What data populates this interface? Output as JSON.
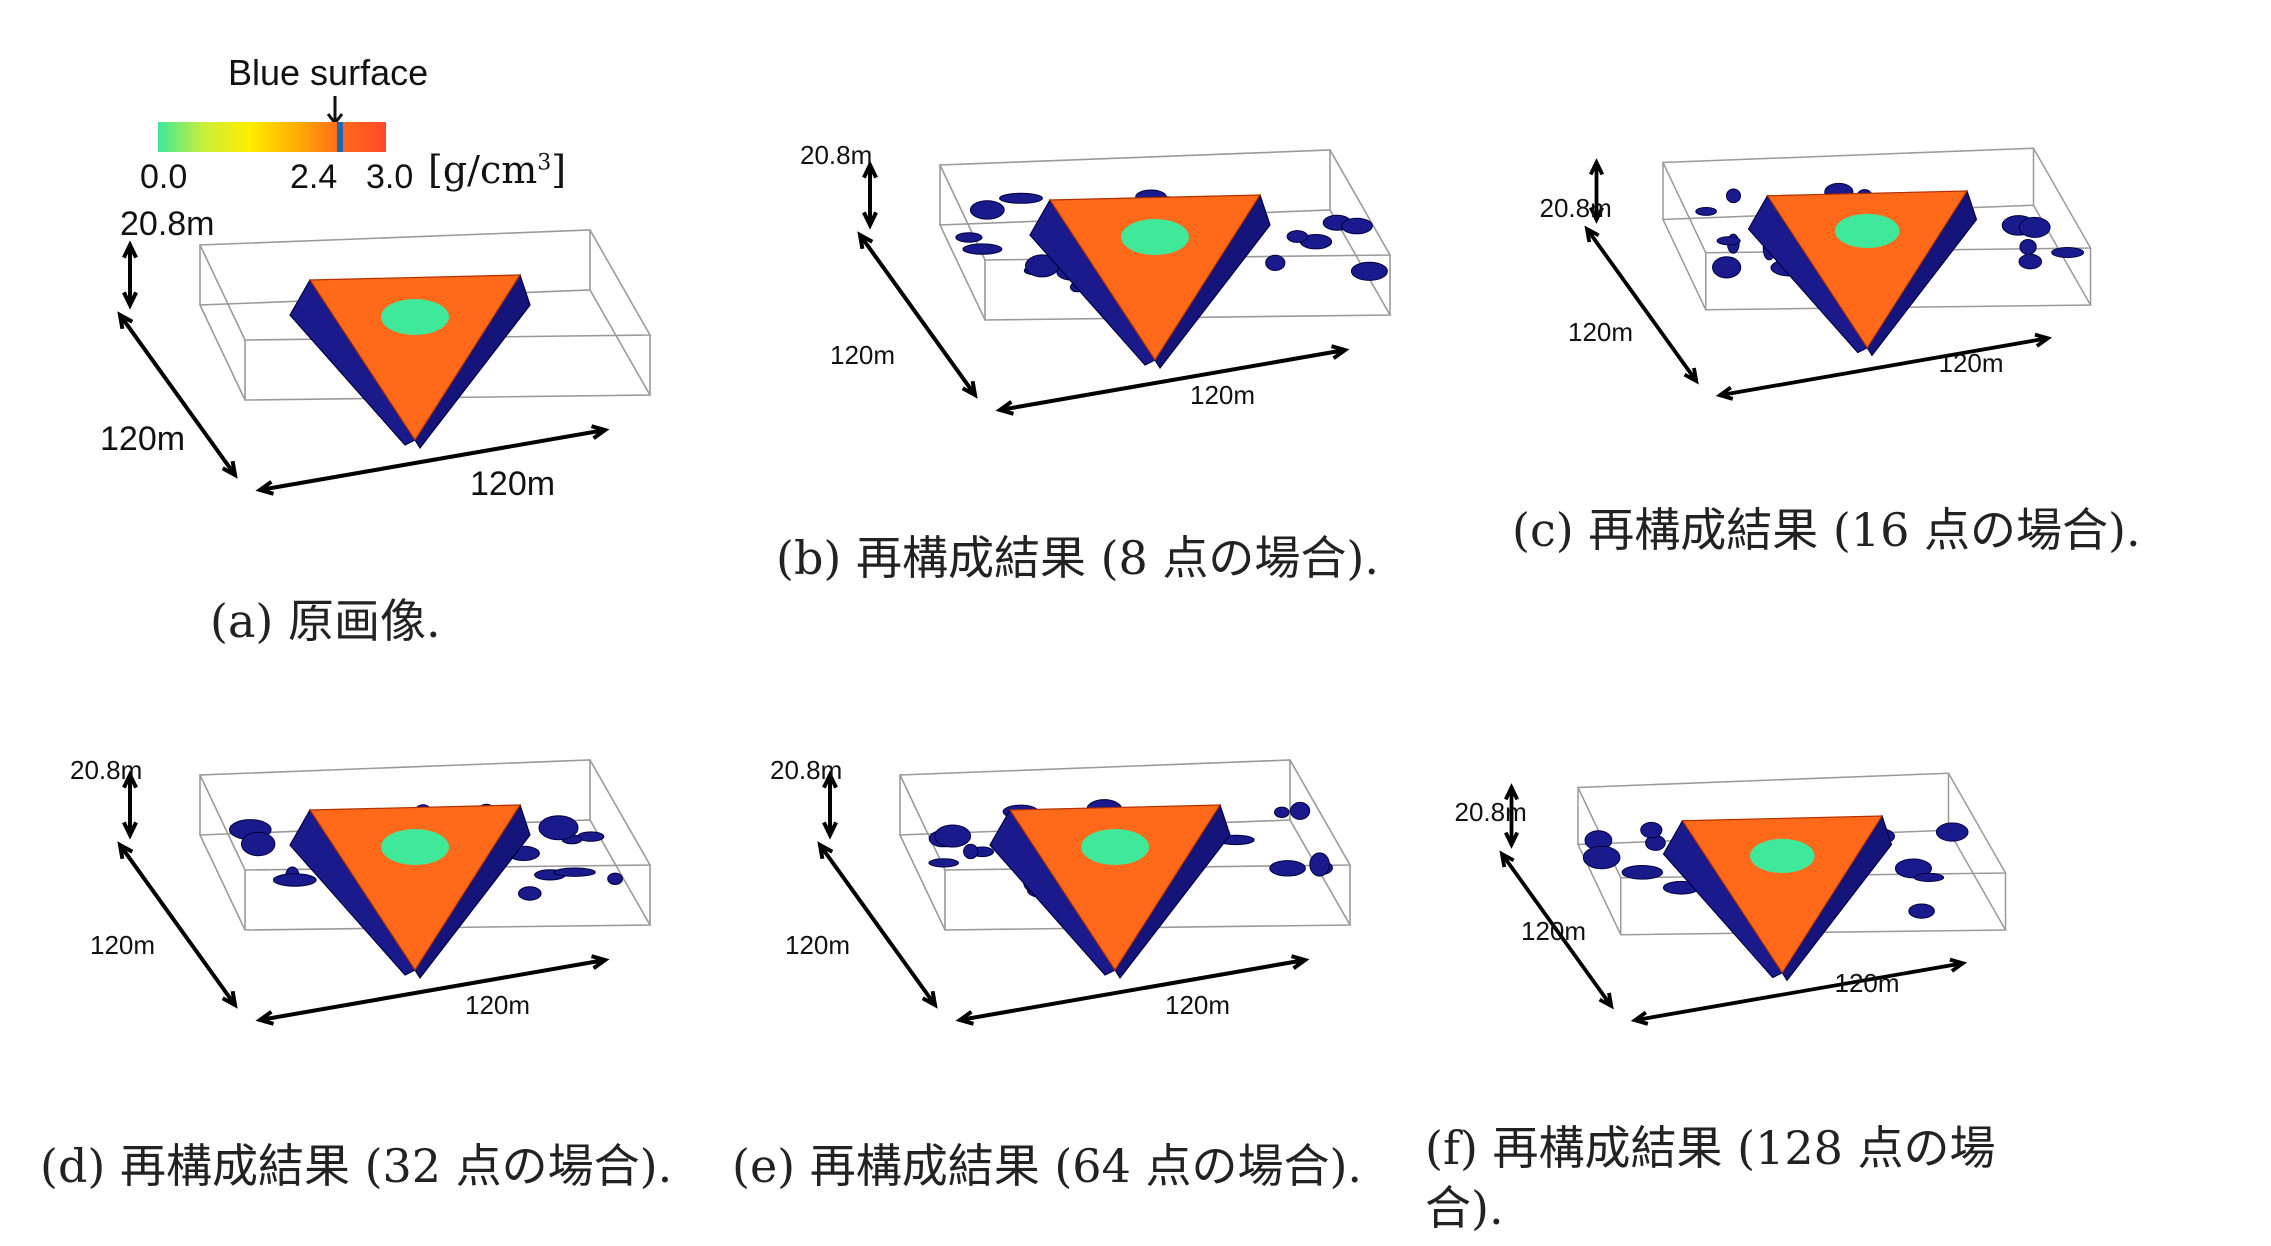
{
  "colorbar": {
    "title": "Blue surface",
    "min_label": "0.0",
    "mark_label": "2.4",
    "max_label": "3.0",
    "unit_prefix": "[g/cm",
    "unit_exp": "3",
    "unit_suffix": "]",
    "min": 0.0,
    "max": 3.0,
    "surface_value": 2.4,
    "gradient": [
      "#40e89a",
      "#c8ef3a",
      "#ffee00",
      "#ffb000",
      "#ff6a1a",
      "#ff4a2a"
    ],
    "surface_color": "#1e66b0"
  },
  "colors": {
    "surface_blue": "#1a1a8c",
    "top_orange": "#ff6a1a",
    "center_green": "#40e89a"
  },
  "panels": [
    {
      "id": "a",
      "height_label": "20.8m",
      "left_label": "120m",
      "bottom_label": "120m",
      "caption": "(a) 原画像."
    },
    {
      "id": "b",
      "height_label": "20.8m",
      "left_label": "120m",
      "bottom_label": "120m",
      "caption": "(b) 再構成結果 (8 点の場合)."
    },
    {
      "id": "c",
      "height_label": "20.8m",
      "left_label": "120m",
      "bottom_label": "120m",
      "caption": "(c) 再構成結果 (16 点の場合)."
    },
    {
      "id": "d",
      "height_label": "20.8m",
      "left_label": "120m",
      "bottom_label": "120m",
      "caption": "(d) 再構成結果 (32 点の場合)."
    },
    {
      "id": "e",
      "height_label": "20.8m",
      "left_label": "120m",
      "bottom_label": "120m",
      "caption": "(e) 再構成結果 (64 点の場合)."
    },
    {
      "id": "f",
      "height_label": "20.8m",
      "left_label": "120m",
      "bottom_label": "120m",
      "caption_line1": "(f) 再構成結果 (128 点の場",
      "caption_line2": "合)."
    }
  ]
}
